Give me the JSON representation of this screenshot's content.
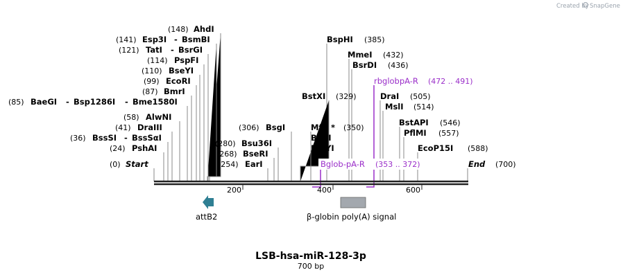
{
  "credit": {
    "prefix": "Created by",
    "brand": "SnapGene"
  },
  "map": {
    "name": "LSB-hsa-miR-128-3p",
    "length_label": "700 bp",
    "length": 700,
    "start_label": "Start",
    "start_pos": "(0)",
    "end_label": "End",
    "end_pos": "(700)",
    "ticks": [
      "200",
      "400",
      "600"
    ]
  },
  "enzymes": [
    {
      "name": "AhdI",
      "pos": "(148)"
    },
    {
      "name": "Esp3I",
      "pos": "(141)",
      "alias": "BsmBI"
    },
    {
      "name": "TatI",
      "pos": "(121)",
      "alias": "BsrGI"
    },
    {
      "name": "PspFI",
      "pos": "(114)"
    },
    {
      "name": "BseYI",
      "pos": "(110)"
    },
    {
      "name": "EcoRI",
      "pos": "(99)"
    },
    {
      "name": "BmrI",
      "pos": "(87)"
    },
    {
      "name": "BaeGI",
      "pos": "(85)",
      "alias": "Bsp1286I",
      "alias2": "Bme1580I"
    },
    {
      "name": "AlwNI",
      "pos": "(58)"
    },
    {
      "name": "DraIII",
      "pos": "(41)"
    },
    {
      "name": "BssSI",
      "pos": "(36)",
      "alias": "BssSαI"
    },
    {
      "name": "PshAI",
      "pos": "(24)"
    },
    {
      "name": "Bsu36I",
      "pos": "(280)"
    },
    {
      "name": "BseRI",
      "pos": "(268)"
    },
    {
      "name": "EarI",
      "pos": "(254)"
    },
    {
      "name": "BsgI",
      "pos": "(306)"
    },
    {
      "name": "BspHI",
      "pos": "(385)"
    },
    {
      "name": "MmeI",
      "pos": "(432)"
    },
    {
      "name": "BsrDI",
      "pos": "(436)"
    },
    {
      "name": "BstXI",
      "pos": "(329)"
    },
    {
      "name": "MflI",
      "pos": "(350)",
      "mark": "*"
    },
    {
      "name": "BglII",
      "pos": ""
    },
    {
      "name": "BstYI",
      "pos": ""
    },
    {
      "name": "DraI",
      "pos": "(505)"
    },
    {
      "name": "MslI",
      "pos": "(514)"
    },
    {
      "name": "BstAPI",
      "pos": "(546)"
    },
    {
      "name": "PflMI",
      "pos": "(557)"
    },
    {
      "name": "EcoP15I",
      "pos": "(588)"
    }
  ],
  "primers": [
    {
      "name": "rbglobpA-R",
      "range": "(472 .. 491)",
      "color": "#9a2ec9"
    },
    {
      "name": "Bglob-pA-R",
      "range": "(353 .. 372)",
      "color": "#9a2ec9"
    }
  ],
  "features": [
    {
      "name": "attB2",
      "color": "#2f7f93"
    },
    {
      "name": "β-globin poly(A) signal",
      "color": "#a3a8ae"
    }
  ]
}
